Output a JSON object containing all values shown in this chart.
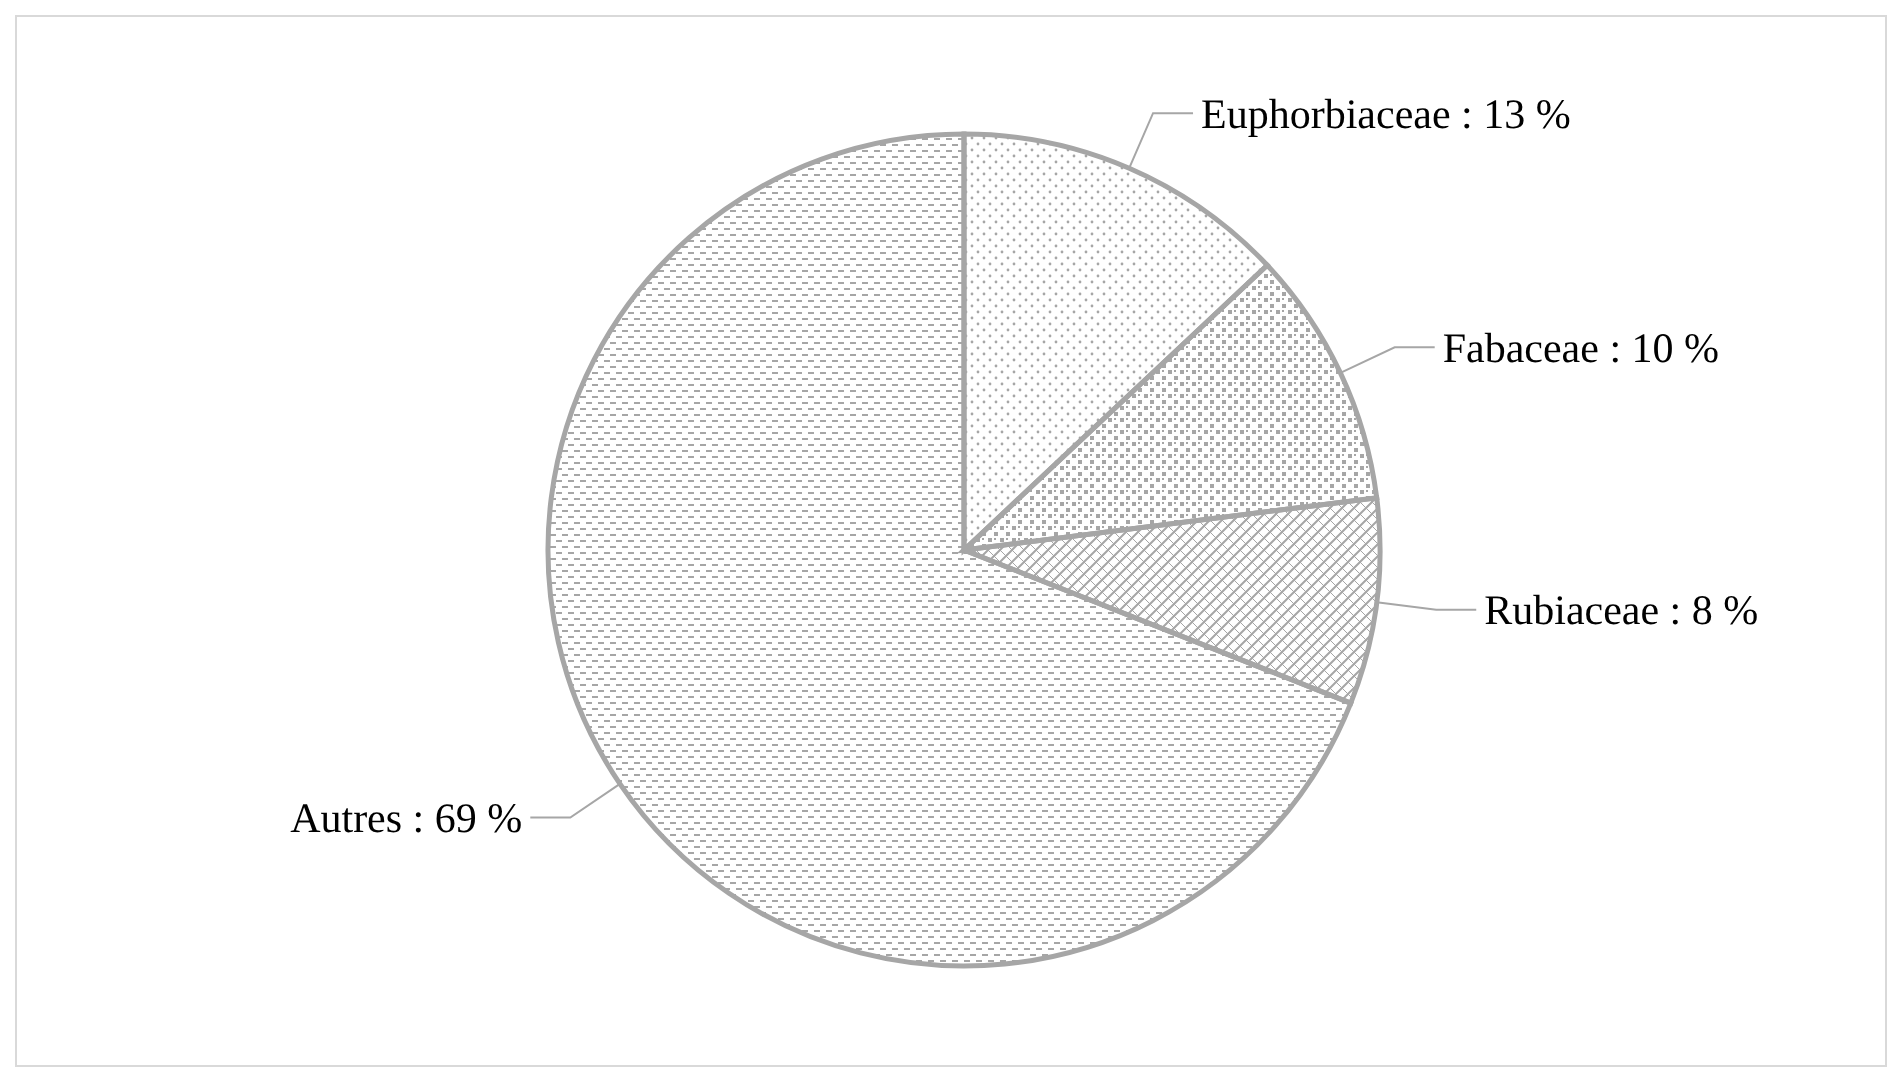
{
  "chart_data": {
    "type": "pie",
    "categories": [
      "Euphorbiaceae : 13 %",
      "Fabaceae : 10 %",
      "Rubiaceae : 8 %",
      "Autres : 69 %"
    ],
    "values": [
      13,
      10,
      8,
      69
    ],
    "colors": [
      "#a6a6a6",
      "#a6a6a6",
      "#a6a6a6",
      "#a6a6a6"
    ]
  }
}
